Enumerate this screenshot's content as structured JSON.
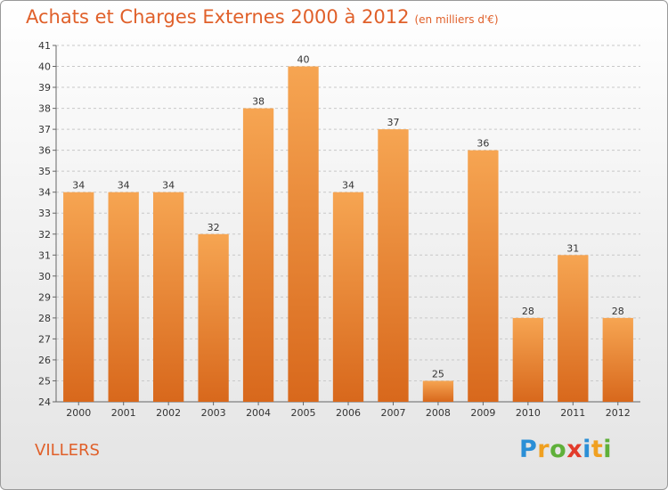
{
  "title": "Achats et Charges Externes 2000 à 2012",
  "subtitle": "(en milliers d'€)",
  "commune": "VILLERS",
  "logo_text": "Proxiti",
  "colors": {
    "bar_top": "#f6a552",
    "bar_bottom": "#d8681c",
    "title": "#e0602a",
    "grid": "#c8c8c8"
  },
  "chart_data": {
    "type": "bar",
    "categories": [
      "2000",
      "2001",
      "2002",
      "2003",
      "2004",
      "2005",
      "2006",
      "2007",
      "2008",
      "2009",
      "2010",
      "2011",
      "2012"
    ],
    "values": [
      34,
      34,
      34,
      32,
      38,
      40,
      34,
      37,
      25,
      36,
      28,
      31,
      28
    ],
    "ylim": [
      24,
      41
    ],
    "yticks": [
      24,
      25,
      26,
      27,
      28,
      29,
      30,
      31,
      32,
      33,
      34,
      35,
      36,
      37,
      38,
      39,
      40,
      41
    ],
    "grid": true,
    "xlabel": "",
    "ylabel": ""
  }
}
